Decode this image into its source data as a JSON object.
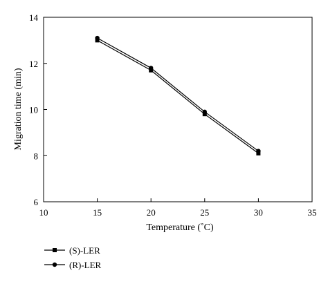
{
  "chart_data": {
    "type": "line",
    "title": "",
    "xlabel": "Temperature (˚C)",
    "ylabel": "Migration time (min)",
    "xlim": [
      10,
      35
    ],
    "ylim": [
      6,
      14
    ],
    "xticks": [
      10,
      15,
      20,
      25,
      30,
      35
    ],
    "yticks": [
      6,
      8,
      10,
      12,
      14
    ],
    "grid": false,
    "legend_position": "bottom-left, below plot",
    "x": [
      15,
      20,
      25,
      30
    ],
    "series": [
      {
        "name": "(S)-LER",
        "marker": "square",
        "color": "#000000",
        "values": [
          13.0,
          11.7,
          9.8,
          8.1
        ]
      },
      {
        "name": "(R)-LER",
        "marker": "circle",
        "color": "#000000",
        "values": [
          13.1,
          11.8,
          9.9,
          8.2
        ]
      }
    ]
  }
}
